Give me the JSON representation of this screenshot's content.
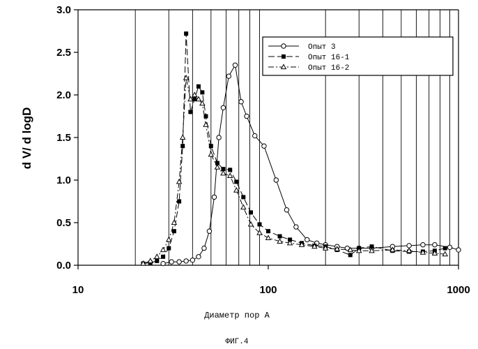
{
  "chart_data": {
    "type": "line",
    "title": "",
    "xlabel": "Диаметр пор А",
    "ylabel": "d V/ d logD",
    "caption": "ФИГ.4",
    "x_scale": "log",
    "xlim": [
      10,
      1000
    ],
    "ylim": [
      0,
      3.0
    ],
    "x_ticks": [
      "10",
      "100",
      "1000"
    ],
    "y_ticks": [
      "0.0",
      "0.5",
      "1.0",
      "1.5",
      "2.0",
      "2.5",
      "3.0"
    ],
    "grid": "vertical minor log gridlines",
    "legend_position": "top-right",
    "series": [
      {
        "name": "Опыт 3",
        "marker": "circle",
        "line": "solid",
        "points": [
          [
            28,
            0.02
          ],
          [
            31,
            0.04
          ],
          [
            34,
            0.04
          ],
          [
            37,
            0.05
          ],
          [
            40,
            0.06
          ],
          [
            43,
            0.1
          ],
          [
            46,
            0.2
          ],
          [
            49,
            0.4
          ],
          [
            52,
            0.8
          ],
          [
            55,
            1.5
          ],
          [
            58,
            1.85
          ],
          [
            62,
            2.22
          ],
          [
            67,
            2.35
          ],
          [
            72,
            1.92
          ],
          [
            77,
            1.75
          ],
          [
            85,
            1.52
          ],
          [
            95,
            1.4
          ],
          [
            110,
            1.0
          ],
          [
            125,
            0.65
          ],
          [
            140,
            0.45
          ],
          [
            160,
            0.3
          ],
          [
            180,
            0.26
          ],
          [
            200,
            0.24
          ],
          [
            230,
            0.22
          ],
          [
            260,
            0.2
          ],
          [
            300,
            0.2
          ],
          [
            350,
            0.2
          ],
          [
            450,
            0.22
          ],
          [
            550,
            0.23
          ],
          [
            650,
            0.24
          ],
          [
            750,
            0.24
          ],
          [
            900,
            0.21
          ],
          [
            1000,
            0.18
          ]
        ]
      },
      {
        "name": "Опыт 16-1",
        "marker": "square",
        "line": "dashed",
        "points": [
          [
            22,
            0.02
          ],
          [
            24,
            0.03
          ],
          [
            26,
            0.05
          ],
          [
            28,
            0.1
          ],
          [
            30,
            0.2
          ],
          [
            32,
            0.4
          ],
          [
            34,
            0.75
          ],
          [
            35.5,
            1.4
          ],
          [
            37,
            2.72
          ],
          [
            39,
            1.8
          ],
          [
            41,
            1.95
          ],
          [
            43,
            2.1
          ],
          [
            45,
            2.03
          ],
          [
            47,
            1.75
          ],
          [
            50,
            1.4
          ],
          [
            54,
            1.2
          ],
          [
            58,
            1.13
          ],
          [
            63,
            1.12
          ],
          [
            68,
            0.98
          ],
          [
            74,
            0.8
          ],
          [
            81,
            0.62
          ],
          [
            90,
            0.48
          ],
          [
            100,
            0.4
          ],
          [
            115,
            0.34
          ],
          [
            130,
            0.3
          ],
          [
            150,
            0.26
          ],
          [
            175,
            0.23
          ],
          [
            200,
            0.22
          ],
          [
            230,
            0.18
          ],
          [
            270,
            0.12
          ],
          [
            300,
            0.2
          ],
          [
            350,
            0.22
          ],
          [
            450,
            0.17
          ],
          [
            550,
            0.16
          ],
          [
            650,
            0.16
          ],
          [
            750,
            0.17
          ],
          [
            850,
            0.2
          ]
        ]
      },
      {
        "name": "Опыт 16-2",
        "marker": "triangle",
        "line": "dash-dot",
        "points": [
          [
            22,
            0.02
          ],
          [
            24,
            0.05
          ],
          [
            26,
            0.1
          ],
          [
            28,
            0.18
          ],
          [
            30,
            0.3
          ],
          [
            32,
            0.5
          ],
          [
            34,
            0.98
          ],
          [
            35.5,
            1.5
          ],
          [
            37,
            2.2
          ],
          [
            39,
            1.95
          ],
          [
            41,
            2.0
          ],
          [
            43,
            1.95
          ],
          [
            45,
            1.9
          ],
          [
            47,
            1.65
          ],
          [
            50,
            1.3
          ],
          [
            54,
            1.15
          ],
          [
            58,
            1.08
          ],
          [
            63,
            1.05
          ],
          [
            68,
            0.88
          ],
          [
            74,
            0.68
          ],
          [
            81,
            0.48
          ],
          [
            90,
            0.38
          ],
          [
            100,
            0.32
          ],
          [
            115,
            0.28
          ],
          [
            130,
            0.26
          ],
          [
            150,
            0.24
          ],
          [
            175,
            0.22
          ],
          [
            200,
            0.2
          ],
          [
            230,
            0.19
          ],
          [
            270,
            0.18
          ],
          [
            300,
            0.17
          ],
          [
            350,
            0.17
          ],
          [
            450,
            0.18
          ],
          [
            550,
            0.17
          ],
          [
            650,
            0.15
          ],
          [
            750,
            0.14
          ],
          [
            850,
            0.13
          ]
        ]
      }
    ]
  }
}
